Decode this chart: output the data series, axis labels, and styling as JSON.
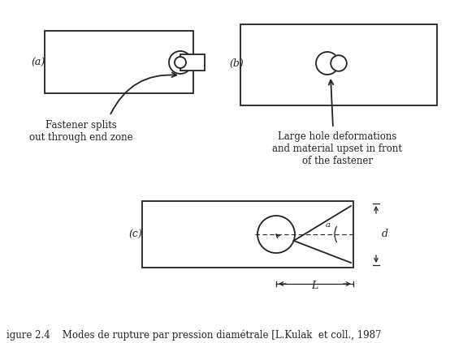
{
  "bg_color": "#ffffff",
  "line_color": "#222222",
  "label_a": "(a)",
  "label_b": "(b)",
  "label_c": "(c)",
  "text_a": "Fastener splits\nout through end zone",
  "text_b": "Large hole deformations\nand material upset in front\nof the fastener",
  "dim_d": "d",
  "dim_L": "L",
  "angle_label": "a",
  "caption": "igure 2.4    Modes de rupture par pression diamétrale [L.Kulak  et coll., 1987"
}
